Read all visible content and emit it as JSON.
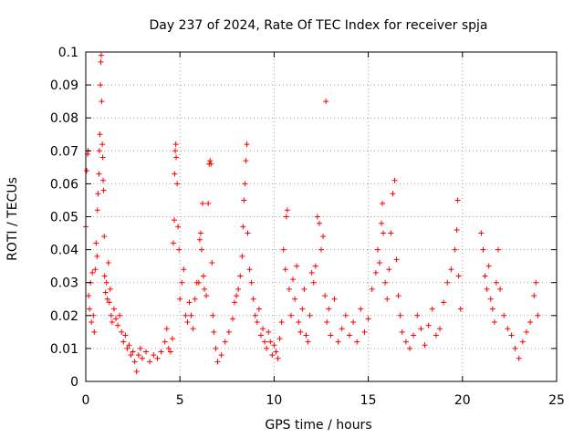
{
  "chart_data": {
    "type": "scatter",
    "title": "Day 237 of 2024, Rate Of TEC Index for receiver spja",
    "xlabel": "GPS time / hours",
    "ylabel": "ROTI / TECUs",
    "xlim": [
      0,
      25
    ],
    "ylim": [
      0,
      0.1
    ],
    "xticks": [
      0,
      5,
      10,
      15,
      20,
      25
    ],
    "yticks": [
      0,
      0.01,
      0.02,
      0.03,
      0.04,
      0.05,
      0.06,
      0.07,
      0.08,
      0.09,
      0.1
    ],
    "xtick_labels": [
      "0",
      "5",
      "10",
      "15",
      "20",
      "25"
    ],
    "ytick_labels": [
      "0",
      "0.01",
      "0.02",
      "0.03",
      "0.04",
      "0.05",
      "0.06",
      "0.07",
      "0.08",
      "0.09",
      "0.1"
    ],
    "grid": true,
    "marker": "+",
    "color": "#ff0000",
    "series": [
      {
        "name": "spja",
        "points": [
          [
            0.0,
            0.047
          ],
          [
            0.05,
            0.064
          ],
          [
            0.1,
            0.069
          ],
          [
            0.12,
            0.07
          ],
          [
            0.15,
            0.026
          ],
          [
            0.2,
            0.022
          ],
          [
            0.25,
            0.03
          ],
          [
            0.3,
            0.018
          ],
          [
            0.35,
            0.033
          ],
          [
            0.4,
            0.02
          ],
          [
            0.45,
            0.015
          ],
          [
            0.5,
            0.034
          ],
          [
            0.55,
            0.042
          ],
          [
            0.6,
            0.038
          ],
          [
            0.62,
            0.052
          ],
          [
            0.65,
            0.057
          ],
          [
            0.7,
            0.063
          ],
          [
            0.72,
            0.07
          ],
          [
            0.75,
            0.075
          ],
          [
            0.78,
            0.09
          ],
          [
            0.8,
            0.097
          ],
          [
            0.82,
            0.099
          ],
          [
            0.85,
            0.085
          ],
          [
            0.88,
            0.072
          ],
          [
            0.9,
            0.068
          ],
          [
            0.92,
            0.061
          ],
          [
            0.95,
            0.058
          ],
          [
            0.98,
            0.044
          ],
          [
            1.0,
            0.032
          ],
          [
            1.05,
            0.027
          ],
          [
            1.1,
            0.03
          ],
          [
            1.15,
            0.025
          ],
          [
            1.2,
            0.036
          ],
          [
            1.25,
            0.024
          ],
          [
            1.3,
            0.028
          ],
          [
            1.35,
            0.02
          ],
          [
            1.4,
            0.018
          ],
          [
            1.5,
            0.022
          ],
          [
            1.6,
            0.019
          ],
          [
            1.7,
            0.017
          ],
          [
            1.8,
            0.02
          ],
          [
            1.9,
            0.015
          ],
          [
            2.0,
            0.012
          ],
          [
            2.1,
            0.014
          ],
          [
            2.2,
            0.01
          ],
          [
            2.3,
            0.011
          ],
          [
            2.4,
            0.008
          ],
          [
            2.5,
            0.009
          ],
          [
            2.6,
            0.006
          ],
          [
            2.7,
            0.003
          ],
          [
            2.8,
            0.008
          ],
          [
            2.9,
            0.01
          ],
          [
            3.0,
            0.007
          ],
          [
            3.2,
            0.009
          ],
          [
            3.4,
            0.006
          ],
          [
            3.6,
            0.008
          ],
          [
            3.8,
            0.007
          ],
          [
            4.0,
            0.009
          ],
          [
            4.2,
            0.012
          ],
          [
            4.3,
            0.016
          ],
          [
            4.4,
            0.01
          ],
          [
            4.5,
            0.009
          ],
          [
            4.6,
            0.013
          ],
          [
            4.65,
            0.042
          ],
          [
            4.7,
            0.049
          ],
          [
            4.72,
            0.063
          ],
          [
            4.75,
            0.07
          ],
          [
            4.78,
            0.072
          ],
          [
            4.8,
            0.068
          ],
          [
            4.85,
            0.06
          ],
          [
            4.9,
            0.047
          ],
          [
            4.95,
            0.04
          ],
          [
            5.0,
            0.025
          ],
          [
            5.1,
            0.03
          ],
          [
            5.2,
            0.034
          ],
          [
            5.3,
            0.02
          ],
          [
            5.4,
            0.018
          ],
          [
            5.5,
            0.024
          ],
          [
            5.6,
            0.02
          ],
          [
            5.7,
            0.016
          ],
          [
            5.8,
            0.025
          ],
          [
            5.9,
            0.03
          ],
          [
            6.0,
            0.03
          ],
          [
            6.05,
            0.043
          ],
          [
            6.1,
            0.045
          ],
          [
            6.15,
            0.04
          ],
          [
            6.2,
            0.054
          ],
          [
            6.25,
            0.032
          ],
          [
            6.3,
            0.028
          ],
          [
            6.4,
            0.026
          ],
          [
            6.5,
            0.054
          ],
          [
            6.55,
            0.066
          ],
          [
            6.6,
            0.067
          ],
          [
            6.65,
            0.066
          ],
          [
            6.7,
            0.036
          ],
          [
            6.75,
            0.02
          ],
          [
            6.8,
            0.015
          ],
          [
            6.9,
            0.01
          ],
          [
            7.0,
            0.006
          ],
          [
            7.2,
            0.008
          ],
          [
            7.4,
            0.012
          ],
          [
            7.6,
            0.015
          ],
          [
            7.8,
            0.019
          ],
          [
            7.9,
            0.024
          ],
          [
            8.0,
            0.026
          ],
          [
            8.1,
            0.028
          ],
          [
            8.2,
            0.032
          ],
          [
            8.3,
            0.038
          ],
          [
            8.35,
            0.047
          ],
          [
            8.4,
            0.055
          ],
          [
            8.45,
            0.06
          ],
          [
            8.5,
            0.067
          ],
          [
            8.55,
            0.072
          ],
          [
            8.6,
            0.045
          ],
          [
            8.7,
            0.034
          ],
          [
            8.8,
            0.03
          ],
          [
            8.9,
            0.025
          ],
          [
            9.0,
            0.02
          ],
          [
            9.1,
            0.018
          ],
          [
            9.2,
            0.022
          ],
          [
            9.3,
            0.014
          ],
          [
            9.4,
            0.016
          ],
          [
            9.5,
            0.012
          ],
          [
            9.6,
            0.01
          ],
          [
            9.7,
            0.015
          ],
          [
            9.8,
            0.012
          ],
          [
            9.9,
            0.008
          ],
          [
            10.0,
            0.011
          ],
          [
            10.1,
            0.009
          ],
          [
            10.2,
            0.007
          ],
          [
            10.3,
            0.013
          ],
          [
            10.4,
            0.018
          ],
          [
            10.5,
            0.04
          ],
          [
            10.6,
            0.034
          ],
          [
            10.65,
            0.05
          ],
          [
            10.7,
            0.052
          ],
          [
            10.8,
            0.028
          ],
          [
            10.9,
            0.02
          ],
          [
            11.0,
            0.031
          ],
          [
            11.1,
            0.025
          ],
          [
            11.2,
            0.035
          ],
          [
            11.3,
            0.018
          ],
          [
            11.4,
            0.015
          ],
          [
            11.5,
            0.022
          ],
          [
            11.6,
            0.028
          ],
          [
            11.7,
            0.014
          ],
          [
            11.8,
            0.012
          ],
          [
            11.9,
            0.02
          ],
          [
            12.0,
            0.033
          ],
          [
            12.1,
            0.03
          ],
          [
            12.2,
            0.035
          ],
          [
            12.3,
            0.05
          ],
          [
            12.4,
            0.048
          ],
          [
            12.5,
            0.04
          ],
          [
            12.6,
            0.044
          ],
          [
            12.7,
            0.026
          ],
          [
            12.75,
            0.085
          ],
          [
            12.8,
            0.018
          ],
          [
            12.9,
            0.022
          ],
          [
            13.0,
            0.014
          ],
          [
            13.2,
            0.025
          ],
          [
            13.4,
            0.012
          ],
          [
            13.6,
            0.016
          ],
          [
            13.8,
            0.02
          ],
          [
            14.0,
            0.014
          ],
          [
            14.2,
            0.018
          ],
          [
            14.4,
            0.012
          ],
          [
            14.6,
            0.022
          ],
          [
            14.8,
            0.015
          ],
          [
            15.0,
            0.019
          ],
          [
            15.2,
            0.028
          ],
          [
            15.4,
            0.033
          ],
          [
            15.5,
            0.04
          ],
          [
            15.6,
            0.036
          ],
          [
            15.7,
            0.048
          ],
          [
            15.75,
            0.054
          ],
          [
            15.8,
            0.045
          ],
          [
            15.9,
            0.03
          ],
          [
            16.0,
            0.025
          ],
          [
            16.1,
            0.034
          ],
          [
            16.2,
            0.045
          ],
          [
            16.3,
            0.057
          ],
          [
            16.4,
            0.061
          ],
          [
            16.5,
            0.037
          ],
          [
            16.6,
            0.026
          ],
          [
            16.7,
            0.02
          ],
          [
            16.8,
            0.015
          ],
          [
            17.0,
            0.012
          ],
          [
            17.2,
            0.01
          ],
          [
            17.4,
            0.014
          ],
          [
            17.6,
            0.02
          ],
          [
            17.8,
            0.016
          ],
          [
            18.0,
            0.011
          ],
          [
            18.2,
            0.017
          ],
          [
            18.4,
            0.022
          ],
          [
            18.6,
            0.014
          ],
          [
            18.8,
            0.016
          ],
          [
            19.0,
            0.024
          ],
          [
            19.2,
            0.03
          ],
          [
            19.4,
            0.034
          ],
          [
            19.6,
            0.04
          ],
          [
            19.7,
            0.046
          ],
          [
            19.75,
            0.055
          ],
          [
            19.8,
            0.032
          ],
          [
            19.9,
            0.022
          ],
          [
            21.0,
            0.045
          ],
          [
            21.1,
            0.04
          ],
          [
            21.2,
            0.032
          ],
          [
            21.3,
            0.028
          ],
          [
            21.4,
            0.035
          ],
          [
            21.5,
            0.025
          ],
          [
            21.6,
            0.022
          ],
          [
            21.7,
            0.018
          ],
          [
            21.8,
            0.03
          ],
          [
            21.9,
            0.04
          ],
          [
            22.0,
            0.028
          ],
          [
            22.2,
            0.02
          ],
          [
            22.4,
            0.016
          ],
          [
            22.6,
            0.014
          ],
          [
            22.8,
            0.01
          ],
          [
            23.0,
            0.007
          ],
          [
            23.2,
            0.012
          ],
          [
            23.4,
            0.015
          ],
          [
            23.6,
            0.018
          ],
          [
            23.8,
            0.026
          ],
          [
            23.9,
            0.03
          ],
          [
            24.0,
            0.02
          ]
        ]
      }
    ]
  }
}
